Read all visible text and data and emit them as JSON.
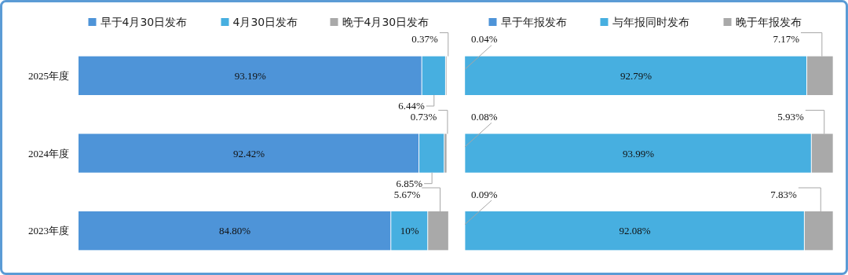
{
  "chart_data": [
    {
      "type": "bar",
      "orientation": "horizontal",
      "stacked": true,
      "categories": [
        "2025年度",
        "2024年度",
        "2023年度"
      ],
      "xlim": [
        0,
        100.5
      ],
      "tick_labels": "y",
      "legend": "top",
      "series": [
        {
          "name": "早于4月30日发布",
          "color": "#4e94d8",
          "values": [
            93.19,
            92.42,
            84.8
          ],
          "value_labels": [
            "93.19%",
            "92.42%",
            "84.80%"
          ]
        },
        {
          "name": "4月30日发布",
          "color": "#47afe0",
          "values": [
            6.44,
            6.85,
            10
          ],
          "value_labels": [
            "6.44%",
            "6.85%",
            "10%"
          ]
        },
        {
          "name": "晚于4月30日发布",
          "color": "#a9a9a9",
          "values": [
            0.37,
            0.73,
            5.67
          ],
          "value_labels": [
            "0.37%",
            "0.73%",
            "5.67%"
          ]
        }
      ]
    },
    {
      "type": "bar",
      "orientation": "horizontal",
      "stacked": true,
      "categories": [
        null,
        null,
        null
      ],
      "xlim": [
        0,
        100.5
      ],
      "tick_labels": false,
      "legend": "top",
      "series": [
        {
          "name": "早于年报发布",
          "color": "#4e94d8",
          "values": [
            0.04,
            0.08,
            0.09
          ],
          "value_labels": [
            "0.04%",
            "0.08%",
            "0.09%"
          ]
        },
        {
          "name": "与年报同时发布",
          "color": "#47afe0",
          "values": [
            92.79,
            93.99,
            92.08
          ],
          "value_labels": [
            "92.79%",
            "93.99%",
            "92.08%"
          ]
        },
        {
          "name": "晚于年报发布",
          "color": "#a9a9a9",
          "values": [
            7.17,
            5.93,
            7.83
          ],
          "value_labels": [
            "7.17%",
            "5.93%",
            "7.83%"
          ]
        }
      ]
    }
  ]
}
